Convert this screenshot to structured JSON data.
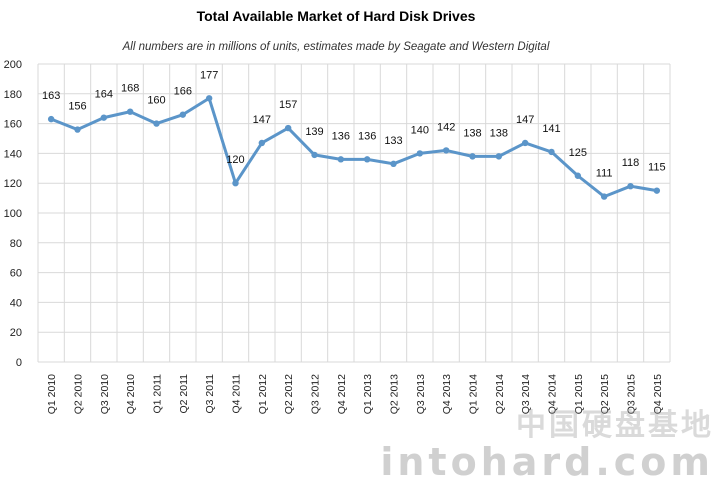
{
  "chart_data": {
    "type": "line",
    "title": "Total Available Market of Hard Disk Drives",
    "subtitle": "All numbers are in millions of units, estimates made by Seagate and Western Digital",
    "xlabel": "",
    "ylabel": "",
    "ylim": [
      0,
      200
    ],
    "yticks": [
      0,
      20,
      40,
      60,
      80,
      100,
      120,
      140,
      160,
      180,
      200
    ],
    "grid": true,
    "line_color": "#5B95C9",
    "categories": [
      "Q1 2010",
      "Q2 2010",
      "Q3 2010",
      "Q4 2010",
      "Q1 2011",
      "Q2 2011",
      "Q3 2011",
      "Q4 2011",
      "Q1 2012",
      "Q2 2012",
      "Q3 2012",
      "Q4 2012",
      "Q1 2013",
      "Q2 2013",
      "Q3 2013",
      "Q4 2013",
      "Q1 2014",
      "Q2 2014",
      "Q3 2014",
      "Q4 2014",
      "Q1 2015",
      "Q2 2015",
      "Q3 2015",
      "Q4 2015"
    ],
    "series": [
      {
        "values": [
          163,
          156,
          164,
          168,
          160,
          166,
          177,
          120,
          147,
          157,
          139,
          136,
          136,
          133,
          140,
          142,
          138,
          138,
          147,
          141,
          125,
          111,
          118,
          115
        ]
      }
    ],
    "data_labels": [
      "163",
      "156",
      "164",
      "168",
      "160",
      "166",
      "177",
      "120",
      "147",
      "157",
      "139",
      "136",
      "136",
      "133",
      "140",
      "142",
      "138",
      "138",
      "147",
      "141",
      "125",
      "111",
      "118",
      "115"
    ]
  },
  "watermark": {
    "cn": "中国硬盘基地",
    "en": "intohard.com"
  }
}
